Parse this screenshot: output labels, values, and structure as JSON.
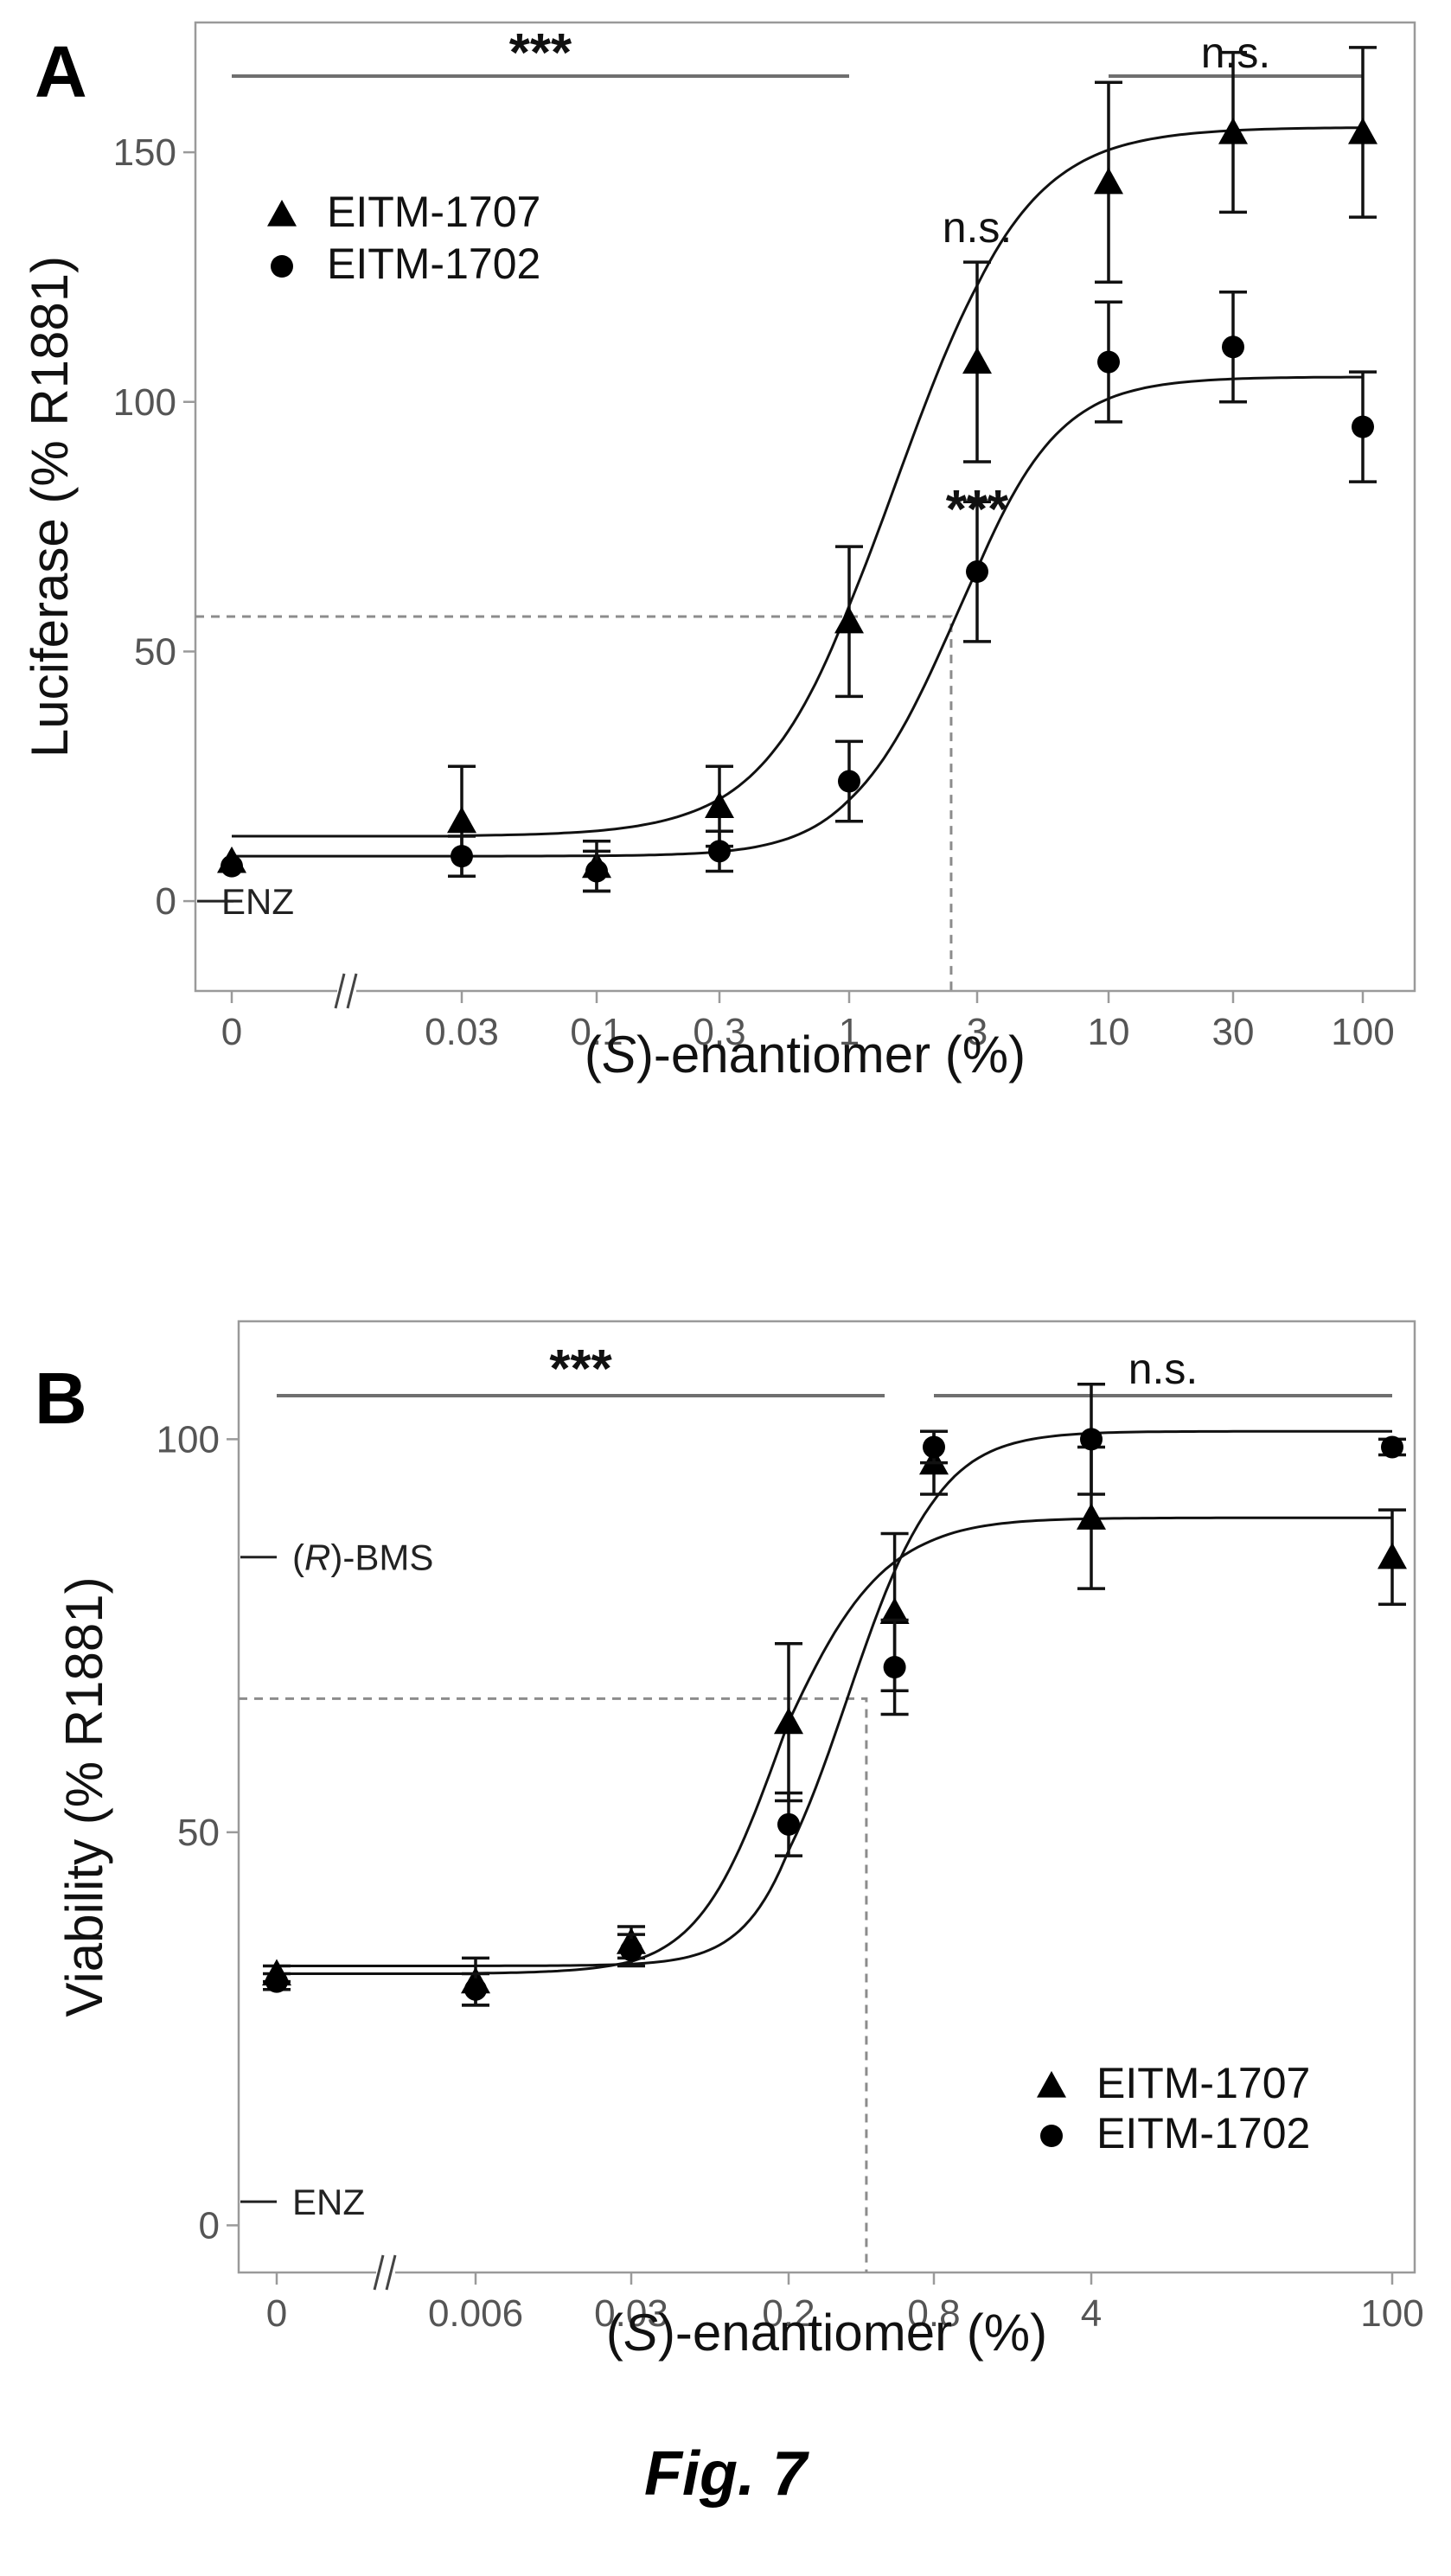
{
  "figure": {
    "caption": "Fig. 7"
  },
  "chart_data": [
    {
      "type": "scatter",
      "panel_label": "A",
      "xlabel_italic": "S",
      "xlabel_prefix": "(",
      "xlabel_suffix": ")-enantiomer (%)",
      "ylabel": "Luciferase (% R1881)",
      "x_scale": "log, broken axis after 0",
      "x_ticks": [
        {
          "label": "0",
          "value": 0
        },
        {
          "label": "0.03",
          "value": 0.03
        },
        {
          "label": "0.1",
          "value": 0.1
        },
        {
          "label": "0.3",
          "value": 0.3
        },
        {
          "label": "1",
          "value": 1
        },
        {
          "label": "3",
          "value": 3
        },
        {
          "label": "10",
          "value": 10
        },
        {
          "label": "30",
          "value": 30
        },
        {
          "label": "100",
          "value": 100
        }
      ],
      "y_ticks": [
        {
          "label": "0",
          "value": 0
        },
        {
          "label": "50",
          "value": 50
        },
        {
          "label": "100",
          "value": 100
        },
        {
          "label": "150",
          "value": 150
        }
      ],
      "ylim": [
        -18,
        176
      ],
      "legend": {
        "placement": "top-left"
      },
      "series": [
        {
          "name": "EITM-1707",
          "marker": "triangle",
          "points": [
            {
              "x": 0,
              "y": 8,
              "err": 0
            },
            {
              "x": 0.03,
              "y": 16,
              "err": 11
            },
            {
              "x": 0.1,
              "y": 7,
              "err": 5
            },
            {
              "x": 0.3,
              "y": 19,
              "err": 8
            },
            {
              "x": 1,
              "y": 56,
              "err": 15
            },
            {
              "x": 3,
              "y": 108,
              "err": 20
            },
            {
              "x": 10,
              "y": 144,
              "err": 20
            },
            {
              "x": 30,
              "y": 154,
              "err": 16
            },
            {
              "x": 100,
              "y": 154,
              "err": 17
            }
          ],
          "fit": {
            "bottom": 13,
            "top": 155,
            "ec50": 1.5,
            "hill": 1.8
          }
        },
        {
          "name": "EITM-1702",
          "marker": "circle",
          "points": [
            {
              "x": 0,
              "y": 7,
              "err": 0
            },
            {
              "x": 0.03,
              "y": 9,
              "err": 4
            },
            {
              "x": 0.1,
              "y": 6,
              "err": 4
            },
            {
              "x": 0.3,
              "y": 10,
              "err": 4
            },
            {
              "x": 1,
              "y": 24,
              "err": 8
            },
            {
              "x": 3,
              "y": 66,
              "err": 14
            },
            {
              "x": 10,
              "y": 108,
              "err": 12
            },
            {
              "x": 30,
              "y": 111,
              "err": 11
            },
            {
              "x": 100,
              "y": 95,
              "err": 11
            }
          ],
          "fit": {
            "bottom": 9,
            "top": 105,
            "ec50": 2.5,
            "hill": 2.2
          }
        }
      ],
      "reference_lines": [
        {
          "label": "ENZ",
          "y": 0
        }
      ],
      "significance": [
        {
          "label": "***",
          "x_from": 0,
          "x_to": 1,
          "y": 175
        },
        {
          "label": "n.s.",
          "x_from": 10,
          "x_to": 100,
          "y": 175
        }
      ],
      "point_annotations": [
        {
          "label": "n.s.",
          "x": 3,
          "y": 132
        },
        {
          "label": "***",
          "x": 3,
          "y": 80
        }
      ],
      "guide": {
        "x": 2.4,
        "y": 57
      }
    },
    {
      "type": "scatter",
      "panel_label": "B",
      "xlabel_italic": "S",
      "xlabel_prefix": "(",
      "xlabel_suffix": ")-enantiomer (%)",
      "ylabel": "Viability (% R1881)",
      "x_scale": "log, broken axis after 0",
      "x_ticks": [
        {
          "label": "0",
          "value": 0
        },
        {
          "label": "0.006",
          "value": 0.006
        },
        {
          "label": "0.03",
          "value": 0.03
        },
        {
          "label": "0.2",
          "value": 0.2
        },
        {
          "label": "0.8",
          "value": 0.8
        },
        {
          "label": "4",
          "value": 4
        },
        {
          "label": "100",
          "value": 100
        }
      ],
      "y_ticks": [
        {
          "label": "0",
          "value": 0
        },
        {
          "label": "50",
          "value": 50
        },
        {
          "label": "100",
          "value": 100
        }
      ],
      "ylim": [
        -6,
        115
      ],
      "legend": {
        "placement": "bottom-right"
      },
      "series": [
        {
          "name": "EITM-1707",
          "marker": "triangle",
          "points": [
            {
              "x": 0,
              "y": 32,
              "err": 1
            },
            {
              "x": 0.006,
              "y": 31,
              "err": 3
            },
            {
              "x": 0.03,
              "y": 36,
              "err": 2
            },
            {
              "x": 0.2,
              "y": 64,
              "err": 10
            },
            {
              "x": 0.55,
              "y": 78,
              "err": 10
            },
            {
              "x": 0.8,
              "y": 97,
              "err": 4
            },
            {
              "x": 4,
              "y": 90,
              "err": 9
            },
            {
              "x": 100,
              "y": 85,
              "err": 6
            }
          ],
          "fit": {
            "bottom": 32,
            "top": 90,
            "ec50": 0.18,
            "hill": 2.0
          }
        },
        {
          "name": "EITM-1702",
          "marker": "circle",
          "points": [
            {
              "x": 0,
              "y": 31,
              "err": 1
            },
            {
              "x": 0.006,
              "y": 30,
              "err": 2
            },
            {
              "x": 0.03,
              "y": 35,
              "err": 2
            },
            {
              "x": 0.2,
              "y": 51,
              "err": 4
            },
            {
              "x": 0.55,
              "y": 71,
              "err": 6
            },
            {
              "x": 0.8,
              "y": 99,
              "err": 2
            },
            {
              "x": 4,
              "y": 100,
              "err": 7
            },
            {
              "x": 100,
              "y": 99,
              "err": 1
            }
          ],
          "fit": {
            "bottom": 33,
            "top": 101,
            "ec50": 0.35,
            "hill": 2.3
          }
        }
      ],
      "reference_lines": [
        {
          "label": "ENZ",
          "y": 3
        },
        {
          "label_italic": "R",
          "label_prefix": "(",
          "label_suffix": ")-BMS",
          "y": 85
        }
      ],
      "significance": [
        {
          "label": "***",
          "x_from": 0,
          "x_to": 0.5,
          "y": 109
        },
        {
          "label": "n.s.",
          "x_from": 0.8,
          "x_to": 100,
          "y": 109
        }
      ],
      "point_annotations": [],
      "guide": {
        "x": 0.42,
        "y": 67
      }
    }
  ]
}
